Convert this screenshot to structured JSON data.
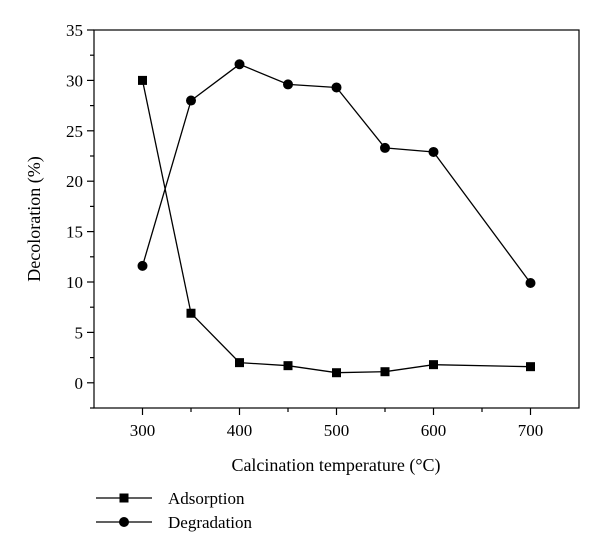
{
  "chart_data": {
    "type": "line",
    "title": "",
    "xlabel": "Calcination temperature (°C)",
    "ylabel": "Decoloration (%)",
    "xlim": [
      250,
      750
    ],
    "ylim": [
      -2.5,
      35
    ],
    "xticks": [
      300,
      400,
      500,
      600,
      700
    ],
    "yticks": [
      0,
      5,
      10,
      15,
      20,
      25,
      30,
      35
    ],
    "grid": false,
    "legend_position": "bottom-left",
    "x": [
      300,
      350,
      400,
      450,
      500,
      550,
      600,
      700
    ],
    "series": [
      {
        "name": "Adsorption",
        "marker": "square",
        "values": [
          30.0,
          6.9,
          2.0,
          1.7,
          1.0,
          1.1,
          1.8,
          1.6
        ]
      },
      {
        "name": "Degradation",
        "marker": "circle",
        "values": [
          11.6,
          28.0,
          31.6,
          29.6,
          29.3,
          23.3,
          22.9,
          9.9
        ]
      }
    ]
  }
}
